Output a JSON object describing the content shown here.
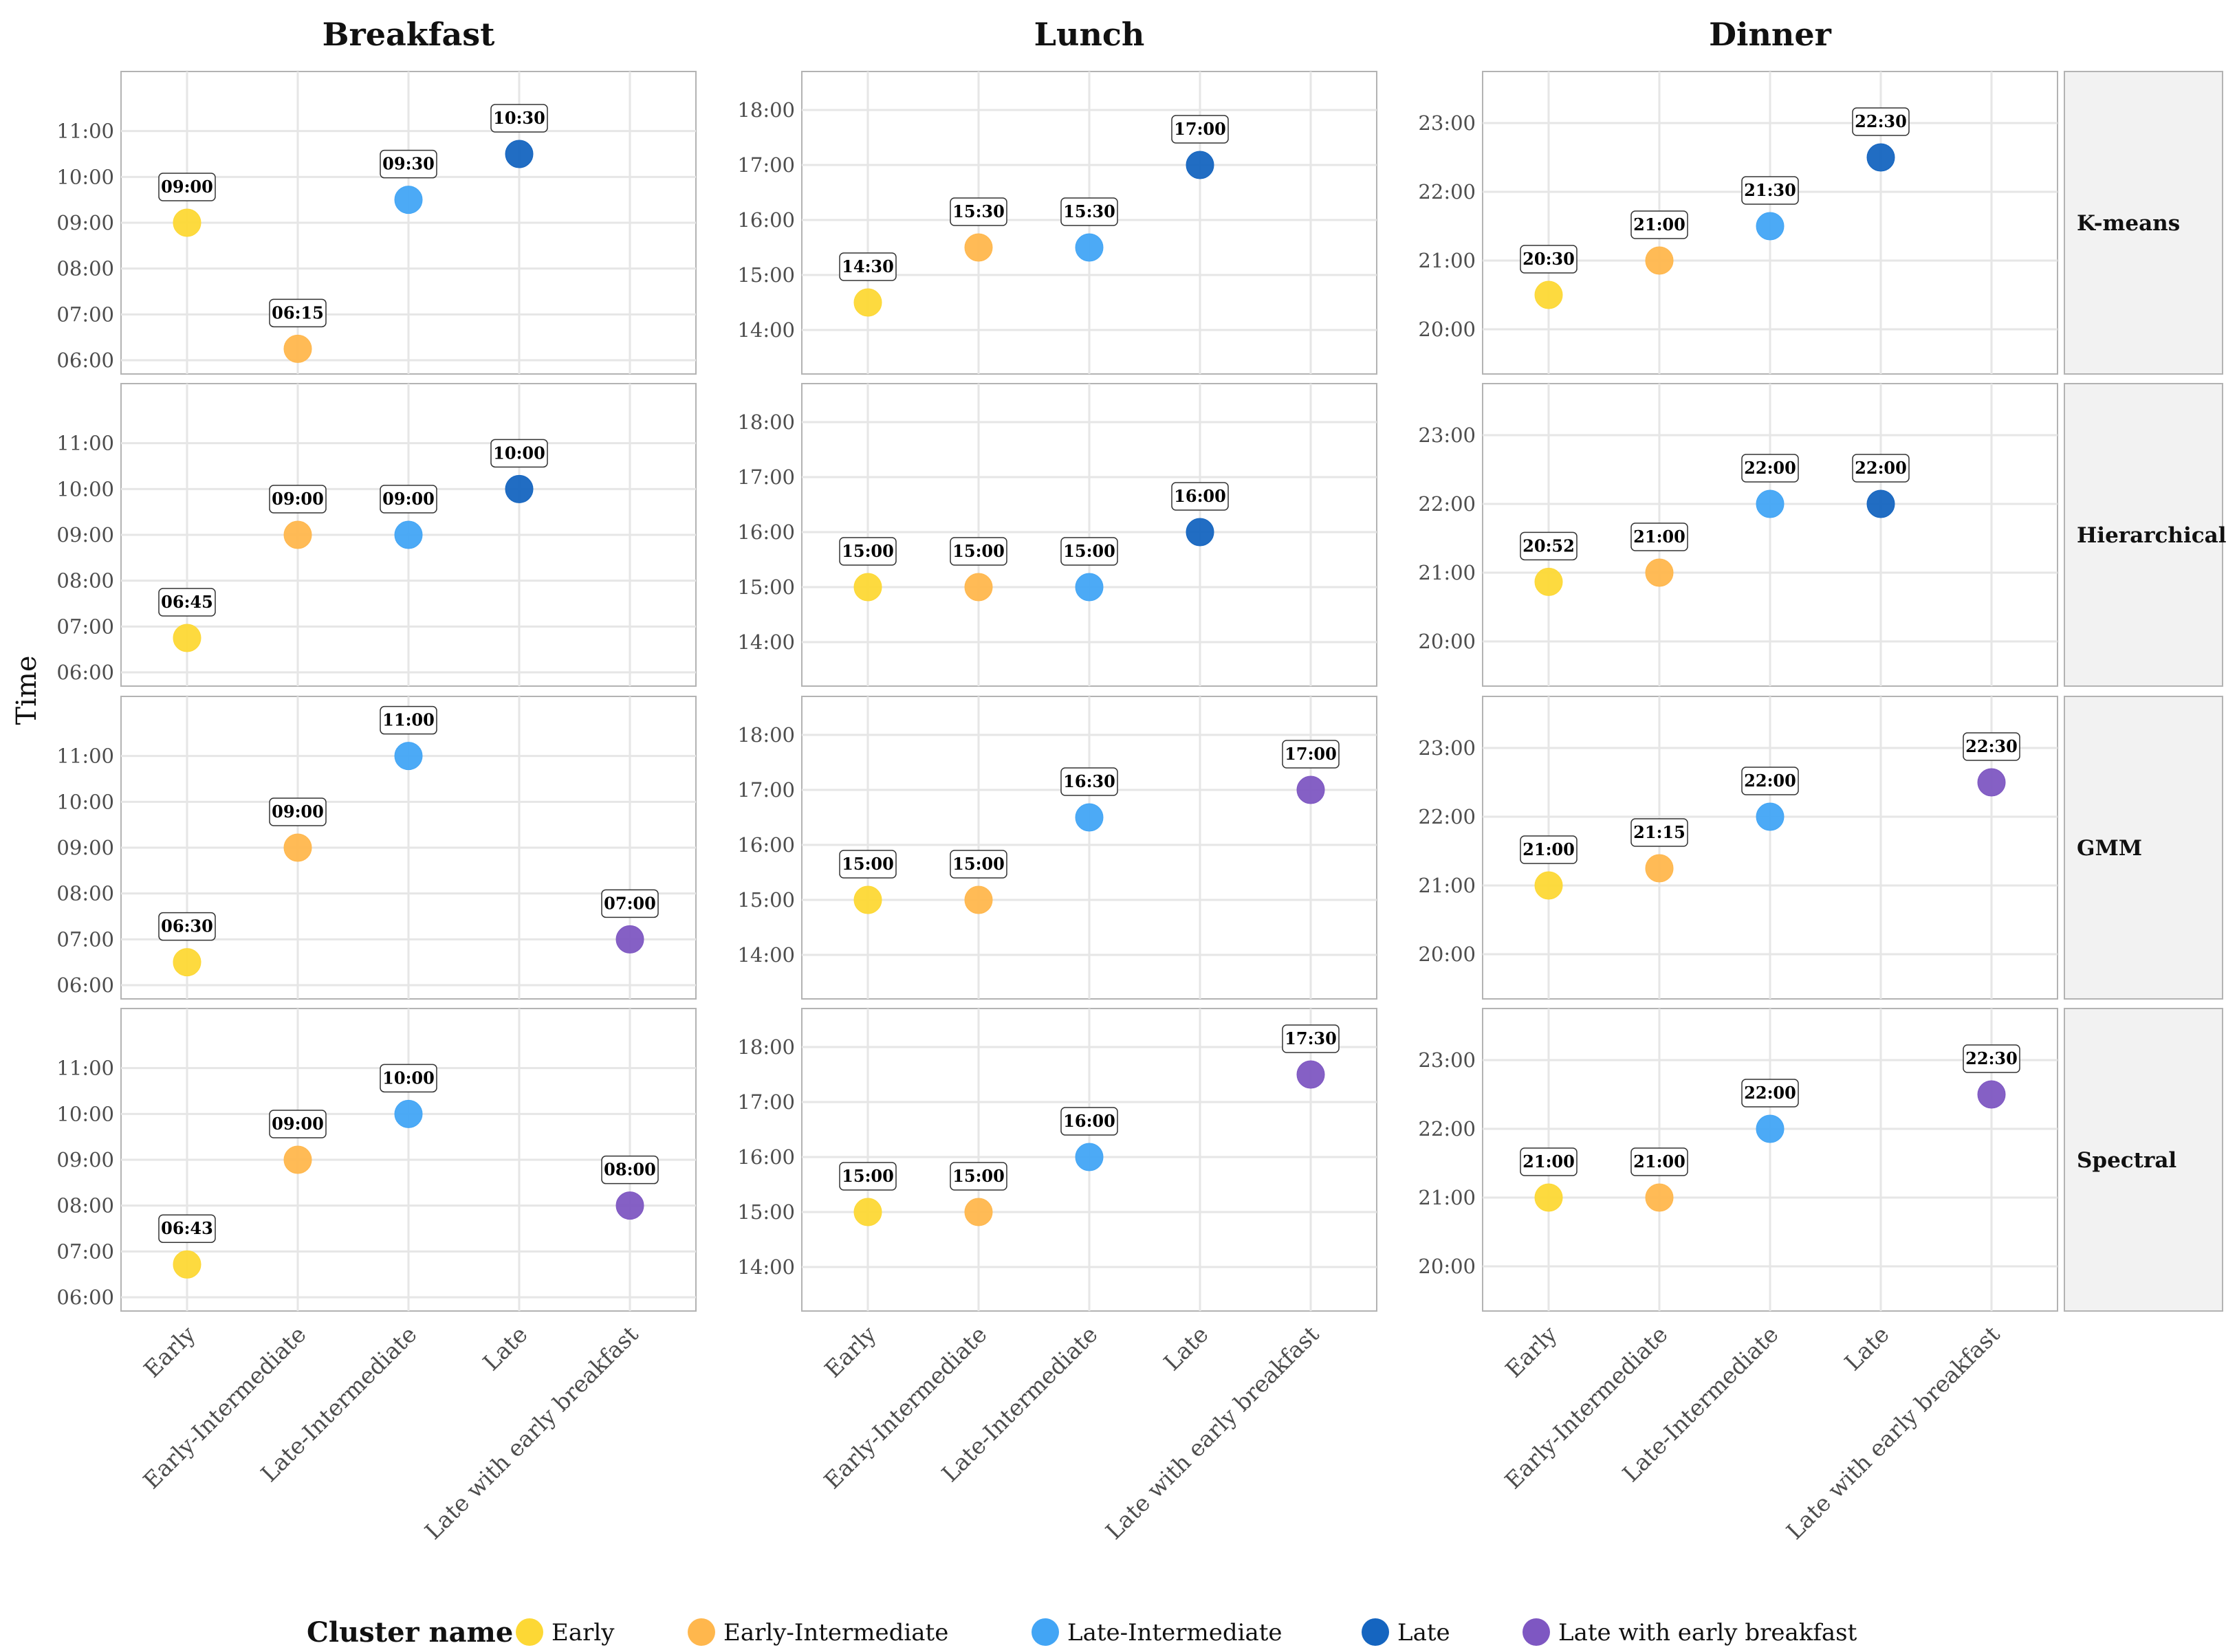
{
  "chart_data": {
    "type": "scatter",
    "ylabel": "Time",
    "columns": [
      "Breakfast",
      "Lunch",
      "Dinner"
    ],
    "rows": [
      "K-means",
      "Hierarchical",
      "GMM",
      "Spectral"
    ],
    "categories": [
      "Early",
      "Early-Intermediate",
      "Late-Intermediate",
      "Late",
      "Late with early breakfast"
    ],
    "y_ticks": {
      "Breakfast": [
        "06:00",
        "07:00",
        "08:00",
        "09:00",
        "10:00",
        "11:00"
      ],
      "Lunch": [
        "14:00",
        "15:00",
        "16:00",
        "17:00",
        "18:00"
      ],
      "Dinner": [
        "20:00",
        "21:00",
        "22:00",
        "23:00"
      ]
    },
    "y_ranges": {
      "Breakfast": [
        5.7,
        12.3
      ],
      "Lunch": [
        13.2,
        18.7
      ],
      "Dinner": [
        19.35,
        23.75
      ]
    },
    "legend": {
      "title": "Cluster name",
      "items": [
        {
          "name": "Early",
          "color": "#FDD835"
        },
        {
          "name": "Early-Intermediate",
          "color": "#FFB74D"
        },
        {
          "name": "Late-Intermediate",
          "color": "#42A5F5"
        },
        {
          "name": "Late",
          "color": "#1565C0"
        },
        {
          "name": "Late with early breakfast",
          "color": "#7E57C2"
        }
      ]
    },
    "points": [
      {
        "row": "K-means",
        "meal": "Breakfast",
        "cluster": "Early",
        "time": 9.0,
        "label": "09:00"
      },
      {
        "row": "K-means",
        "meal": "Breakfast",
        "cluster": "Early-Intermediate",
        "time": 6.25,
        "label": "06:15"
      },
      {
        "row": "K-means",
        "meal": "Breakfast",
        "cluster": "Late-Intermediate",
        "time": 9.5,
        "label": "09:30"
      },
      {
        "row": "K-means",
        "meal": "Breakfast",
        "cluster": "Late",
        "time": 10.5,
        "label": "10:30"
      },
      {
        "row": "K-means",
        "meal": "Lunch",
        "cluster": "Early",
        "time": 14.5,
        "label": "14:30"
      },
      {
        "row": "K-means",
        "meal": "Lunch",
        "cluster": "Early-Intermediate",
        "time": 15.5,
        "label": "15:30"
      },
      {
        "row": "K-means",
        "meal": "Lunch",
        "cluster": "Late-Intermediate",
        "time": 15.5,
        "label": "15:30"
      },
      {
        "row": "K-means",
        "meal": "Lunch",
        "cluster": "Late",
        "time": 17.0,
        "label": "17:00"
      },
      {
        "row": "K-means",
        "meal": "Dinner",
        "cluster": "Early",
        "time": 20.5,
        "label": "20:30"
      },
      {
        "row": "K-means",
        "meal": "Dinner",
        "cluster": "Early-Intermediate",
        "time": 21.0,
        "label": "21:00"
      },
      {
        "row": "K-means",
        "meal": "Dinner",
        "cluster": "Late-Intermediate",
        "time": 21.5,
        "label": "21:30"
      },
      {
        "row": "K-means",
        "meal": "Dinner",
        "cluster": "Late",
        "time": 22.5,
        "label": "22:30"
      },
      {
        "row": "Hierarchical",
        "meal": "Breakfast",
        "cluster": "Early",
        "time": 6.75,
        "label": "06:45"
      },
      {
        "row": "Hierarchical",
        "meal": "Breakfast",
        "cluster": "Early-Intermediate",
        "time": 9.0,
        "label": "09:00"
      },
      {
        "row": "Hierarchical",
        "meal": "Breakfast",
        "cluster": "Late-Intermediate",
        "time": 9.0,
        "label": "09:00"
      },
      {
        "row": "Hierarchical",
        "meal": "Breakfast",
        "cluster": "Late",
        "time": 10.0,
        "label": "10:00"
      },
      {
        "row": "Hierarchical",
        "meal": "Lunch",
        "cluster": "Early",
        "time": 15.0,
        "label": "15:00"
      },
      {
        "row": "Hierarchical",
        "meal": "Lunch",
        "cluster": "Early-Intermediate",
        "time": 15.0,
        "label": "15:00"
      },
      {
        "row": "Hierarchical",
        "meal": "Lunch",
        "cluster": "Late-Intermediate",
        "time": 15.0,
        "label": "15:00"
      },
      {
        "row": "Hierarchical",
        "meal": "Lunch",
        "cluster": "Late",
        "time": 16.0,
        "label": "16:00"
      },
      {
        "row": "Hierarchical",
        "meal": "Dinner",
        "cluster": "Early",
        "time": 20.8667,
        "label": "20:52"
      },
      {
        "row": "Hierarchical",
        "meal": "Dinner",
        "cluster": "Early-Intermediate",
        "time": 21.0,
        "label": "21:00"
      },
      {
        "row": "Hierarchical",
        "meal": "Dinner",
        "cluster": "Late-Intermediate",
        "time": 22.0,
        "label": "22:00"
      },
      {
        "row": "Hierarchical",
        "meal": "Dinner",
        "cluster": "Late",
        "time": 22.0,
        "label": "22:00"
      },
      {
        "row": "GMM",
        "meal": "Breakfast",
        "cluster": "Early",
        "time": 6.5,
        "label": "06:30"
      },
      {
        "row": "GMM",
        "meal": "Breakfast",
        "cluster": "Early-Intermediate",
        "time": 9.0,
        "label": "09:00"
      },
      {
        "row": "GMM",
        "meal": "Breakfast",
        "cluster": "Late-Intermediate",
        "time": 11.0,
        "label": "11:00"
      },
      {
        "row": "GMM",
        "meal": "Breakfast",
        "cluster": "Late with early breakfast",
        "time": 7.0,
        "label": "07:00"
      },
      {
        "row": "GMM",
        "meal": "Lunch",
        "cluster": "Early",
        "time": 15.0,
        "label": "15:00"
      },
      {
        "row": "GMM",
        "meal": "Lunch",
        "cluster": "Early-Intermediate",
        "time": 15.0,
        "label": "15:00"
      },
      {
        "row": "GMM",
        "meal": "Lunch",
        "cluster": "Late-Intermediate",
        "time": 16.5,
        "label": "16:30"
      },
      {
        "row": "GMM",
        "meal": "Lunch",
        "cluster": "Late with early breakfast",
        "time": 17.0,
        "label": "17:00"
      },
      {
        "row": "GMM",
        "meal": "Dinner",
        "cluster": "Early",
        "time": 21.0,
        "label": "21:00"
      },
      {
        "row": "GMM",
        "meal": "Dinner",
        "cluster": "Early-Intermediate",
        "time": 21.25,
        "label": "21:15"
      },
      {
        "row": "GMM",
        "meal": "Dinner",
        "cluster": "Late-Intermediate",
        "time": 22.0,
        "label": "22:00"
      },
      {
        "row": "GMM",
        "meal": "Dinner",
        "cluster": "Late with early breakfast",
        "time": 22.5,
        "label": "22:30"
      },
      {
        "row": "Spectral",
        "meal": "Breakfast",
        "cluster": "Early",
        "time": 6.7167,
        "label": "06:43"
      },
      {
        "row": "Spectral",
        "meal": "Breakfast",
        "cluster": "Early-Intermediate",
        "time": 9.0,
        "label": "09:00"
      },
      {
        "row": "Spectral",
        "meal": "Breakfast",
        "cluster": "Late-Intermediate",
        "time": 10.0,
        "label": "10:00"
      },
      {
        "row": "Spectral",
        "meal": "Breakfast",
        "cluster": "Late with early breakfast",
        "time": 8.0,
        "label": "08:00"
      },
      {
        "row": "Spectral",
        "meal": "Lunch",
        "cluster": "Early",
        "time": 15.0,
        "label": "15:00"
      },
      {
        "row": "Spectral",
        "meal": "Lunch",
        "cluster": "Early-Intermediate",
        "time": 15.0,
        "label": "15:00"
      },
      {
        "row": "Spectral",
        "meal": "Lunch",
        "cluster": "Late-Intermediate",
        "time": 16.0,
        "label": "16:00"
      },
      {
        "row": "Spectral",
        "meal": "Lunch",
        "cluster": "Late with early breakfast",
        "time": 17.5,
        "label": "17:30"
      },
      {
        "row": "Spectral",
        "meal": "Dinner",
        "cluster": "Early",
        "time": 21.0,
        "label": "21:00"
      },
      {
        "row": "Spectral",
        "meal": "Dinner",
        "cluster": "Early-Intermediate",
        "time": 21.0,
        "label": "21:00"
      },
      {
        "row": "Spectral",
        "meal": "Dinner",
        "cluster": "Late-Intermediate",
        "time": 22.0,
        "label": "22:00"
      },
      {
        "row": "Spectral",
        "meal": "Dinner",
        "cluster": "Late with early breakfast",
        "time": 22.5,
        "label": "22:30"
      }
    ]
  }
}
